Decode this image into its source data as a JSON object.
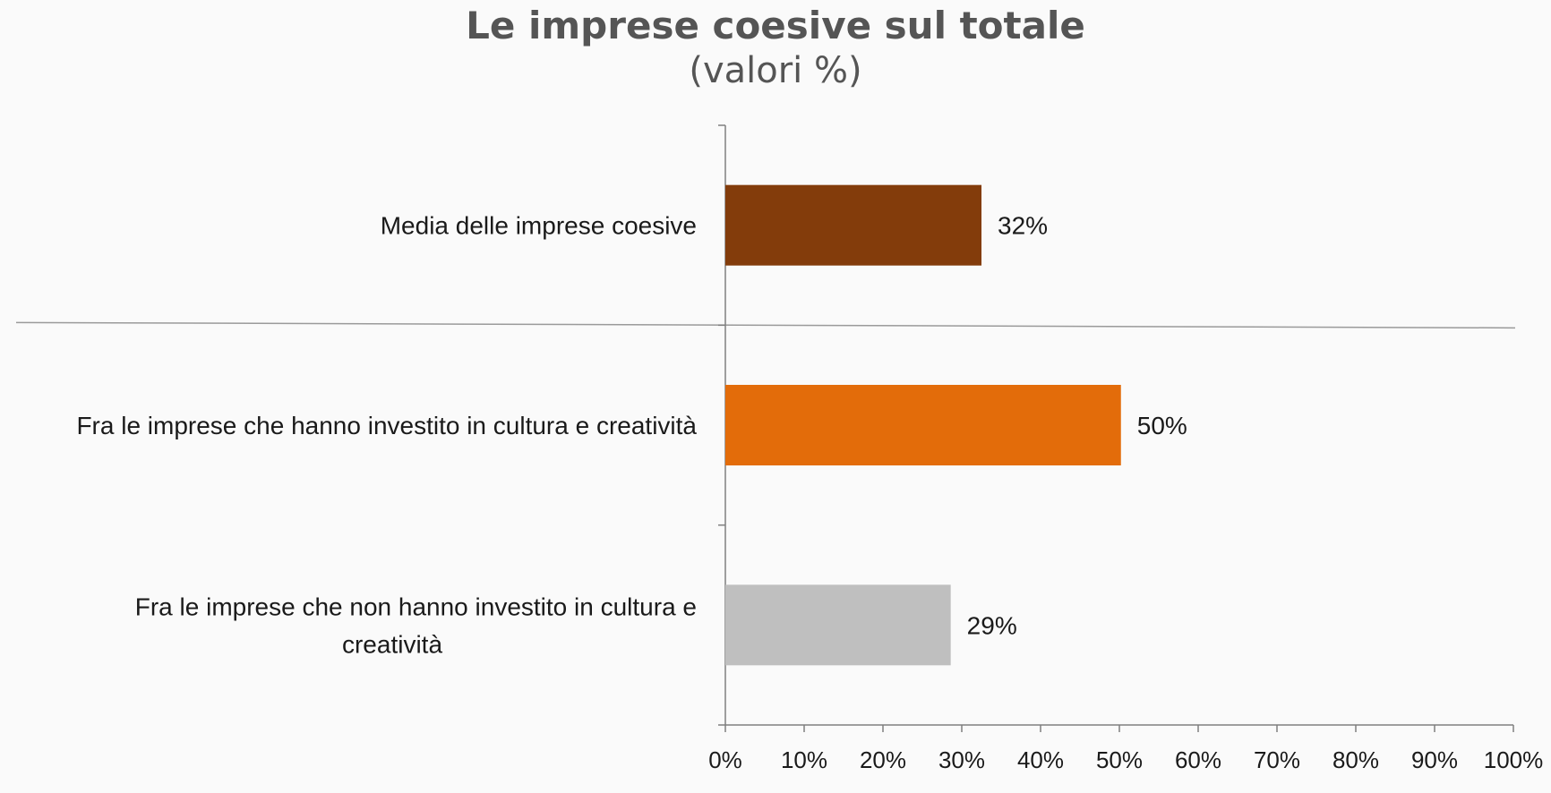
{
  "title": "Le imprese coesive sul totale",
  "subtitle": "(valori %)",
  "chart_data": {
    "type": "bar",
    "orientation": "horizontal",
    "title": "Le imprese coesive sul totale",
    "subtitle": "(valori %)",
    "categories": [
      "Media delle imprese coesive",
      "Fra le imprese che hanno investito in cultura e creatività",
      "Fra le imprese che non hanno investito in cultura e creatività"
    ],
    "category_label_lines": [
      [
        "Media delle imprese coesive"
      ],
      [
        "Fra le imprese che hanno investito in cultura e creatività"
      ],
      [
        "Fra le imprese che non hanno investito in cultura e",
        "creatività"
      ]
    ],
    "values": [
      32.5,
      50.2,
      28.6
    ],
    "data_labels": [
      "32%",
      "50%",
      "29%"
    ],
    "bar_colors": [
      "#833C0B",
      "#E36C0A",
      "#BFBFBF"
    ],
    "xlim": [
      0,
      100
    ],
    "x_ticks": [
      0,
      10,
      20,
      30,
      40,
      50,
      60,
      70,
      80,
      90,
      100
    ],
    "x_tick_labels": [
      "0%",
      "10%",
      "20%",
      "30%",
      "40%",
      "50%",
      "60%",
      "70%",
      "80%",
      "90%",
      "100%"
    ],
    "grid": false,
    "separator_line": "between first and second category"
  }
}
